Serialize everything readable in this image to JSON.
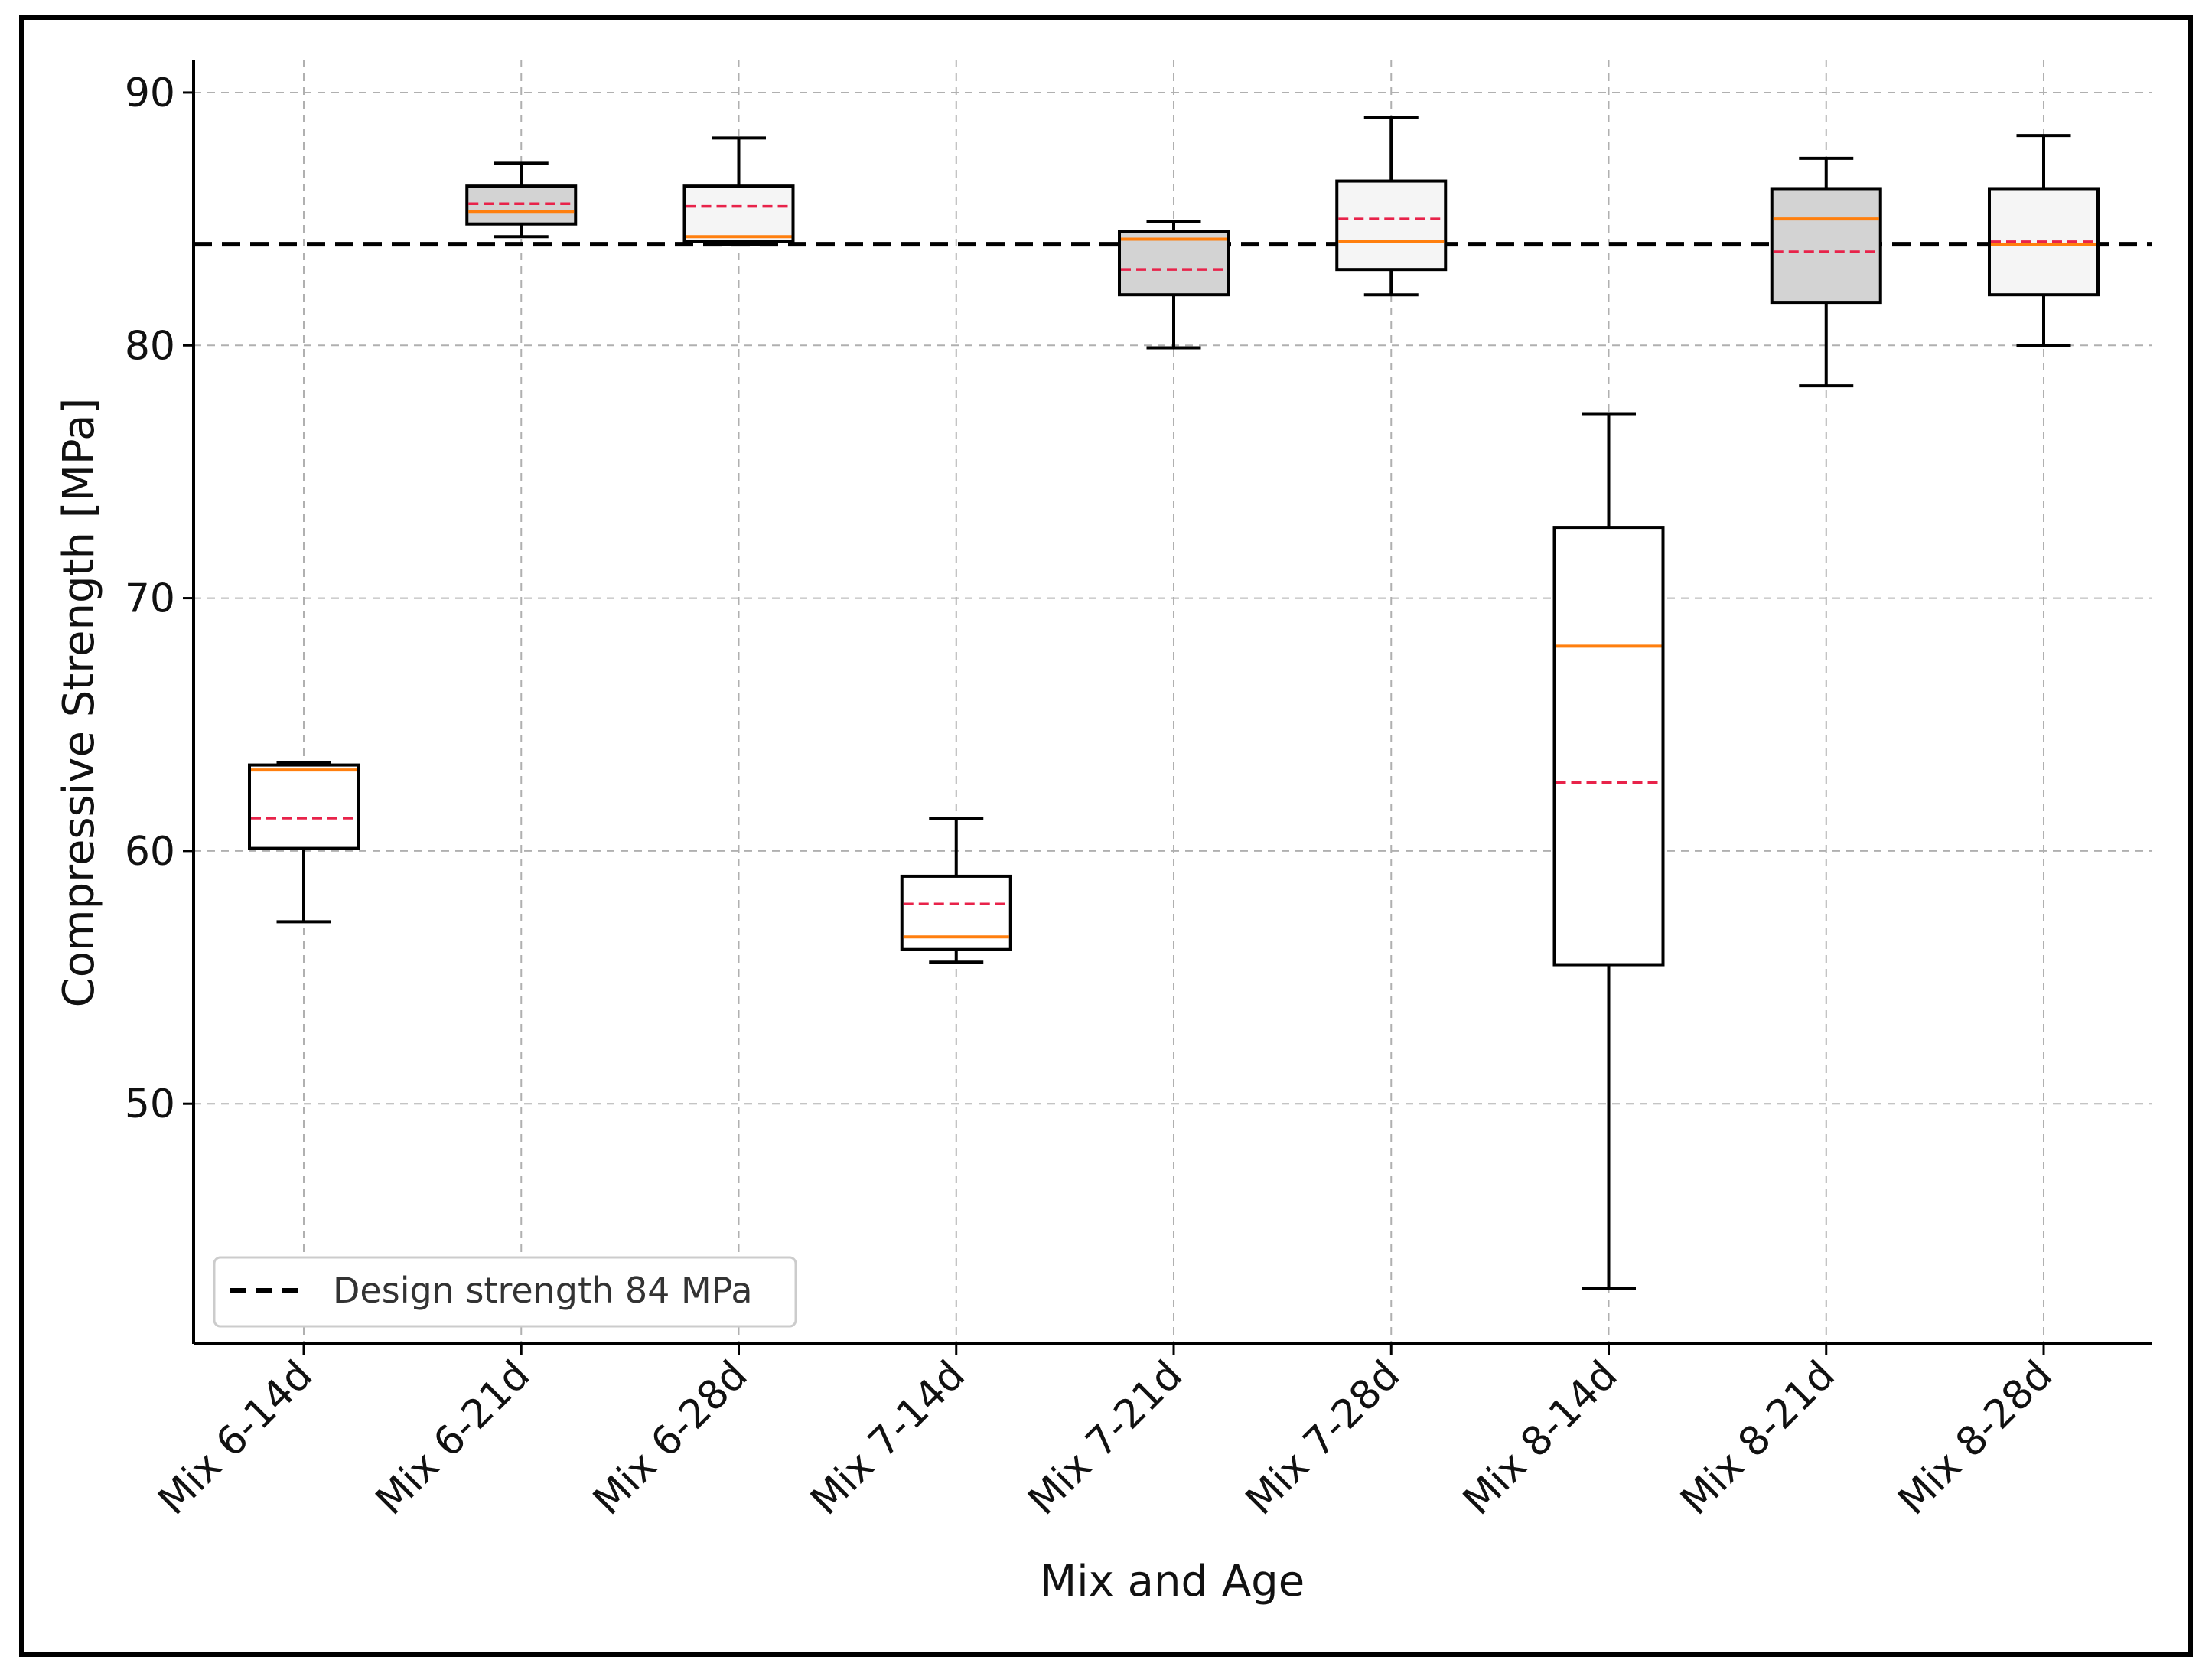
{
  "chart_data": {
    "type": "box",
    "title": "",
    "xlabel": "Mix and Age",
    "ylabel": "Compressive Strength [MPa]",
    "ylim": [
      40.5,
      91.3
    ],
    "yticks": [
      50,
      60,
      70,
      80,
      90
    ],
    "grid": true,
    "categories": [
      "Mix 6-14d",
      "Mix 6-21d",
      "Mix 6-28d",
      "Mix 7-14d",
      "Mix 7-21d",
      "Mix 7-28d",
      "Mix 8-14d",
      "Mix 8-21d",
      "Mix 8-28d"
    ],
    "boxes": [
      {
        "whislo": 57.2,
        "q1": 60.1,
        "med": 63.2,
        "q3": 63.4,
        "whishi": 63.5,
        "mean": 61.3,
        "fill": "#ffffff"
      },
      {
        "whislo": 84.3,
        "q1": 84.8,
        "med": 85.3,
        "q3": 86.3,
        "whishi": 87.2,
        "mean": 85.6,
        "fill": "#d3d3d3"
      },
      {
        "whislo": 84.0,
        "q1": 84.1,
        "med": 84.3,
        "q3": 86.3,
        "whishi": 88.2,
        "mean": 85.5,
        "fill": "#f5f5f5"
      },
      {
        "whislo": 55.6,
        "q1": 56.1,
        "med": 56.6,
        "q3": 59.0,
        "whishi": 61.3,
        "mean": 57.9,
        "fill": "#ffffff"
      },
      {
        "whislo": 79.9,
        "q1": 82.0,
        "med": 84.2,
        "q3": 84.5,
        "whishi": 84.9,
        "mean": 83.0,
        "fill": "#d3d3d3"
      },
      {
        "whislo": 82.0,
        "q1": 83.0,
        "med": 84.1,
        "q3": 86.5,
        "whishi": 89.0,
        "mean": 85.0,
        "fill": "#f5f5f5"
      },
      {
        "whislo": 42.7,
        "q1": 55.5,
        "med": 68.1,
        "q3": 72.8,
        "whishi": 77.3,
        "mean": 62.7,
        "fill": "#ffffff"
      },
      {
        "whislo": 78.4,
        "q1": 81.7,
        "med": 85.0,
        "q3": 86.2,
        "whishi": 87.4,
        "mean": 83.7,
        "fill": "#d3d3d3"
      },
      {
        "whislo": 80.0,
        "q1": 82.0,
        "med": 84.0,
        "q3": 86.2,
        "whishi": 88.3,
        "mean": 84.1,
        "fill": "#f5f5f5"
      }
    ],
    "reference_line": {
      "value": 84,
      "label": "Design strength 84 MPa",
      "color": "#000000"
    },
    "legend": {
      "position": "bottom-left",
      "entries": [
        "Design strength 84 MPa"
      ]
    },
    "colors": {
      "median": "#ff7f0e",
      "mean": "#e8234a",
      "box_edge": "#000000",
      "grid": "#b0b0b0"
    }
  }
}
